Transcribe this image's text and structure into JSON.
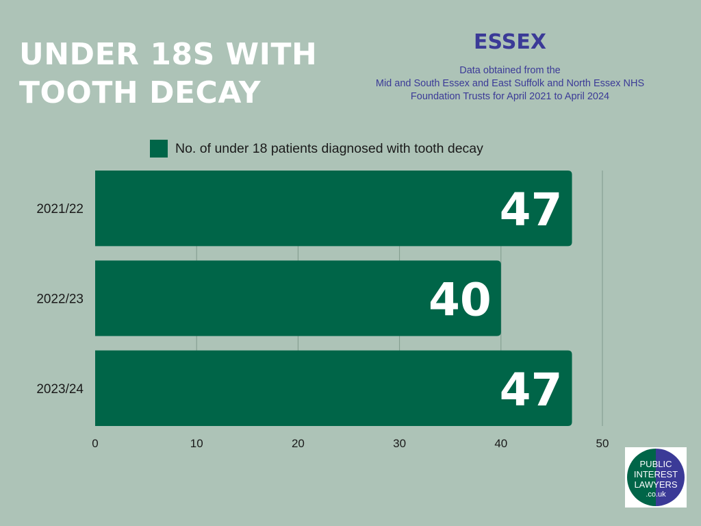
{
  "header": {
    "title_lines": [
      "UNDER 18S WITH",
      "TOOTH DECAY"
    ],
    "region": "ESSEX",
    "source_lines": [
      "Data obtained from the",
      "Mid and South Essex and East Suffolk and North Essex NHS",
      "Foundation Trusts for April 2021 to April 2024"
    ]
  },
  "colors": {
    "background": "#adc3b7",
    "bar": "#006548",
    "title": "#ffffff",
    "accent": "#3b3a97",
    "gridline": "#7f9a8c"
  },
  "logo": {
    "lines": [
      "PUBLIC",
      "INTEREST",
      "LAWYERS",
      ".co.uk"
    ],
    "colors": [
      "#006548",
      "#3b3a97"
    ]
  },
  "chart_data": {
    "type": "bar",
    "orientation": "horizontal",
    "categories": [
      "2021/22",
      "2022/23",
      "2023/24"
    ],
    "series": [
      {
        "name": "No. of under 18 patients diagnosed with tooth decay",
        "values": [
          47,
          40,
          47
        ]
      }
    ],
    "xlim": [
      0,
      50
    ],
    "xticks": [
      0,
      10,
      20,
      30,
      40,
      50
    ],
    "grid": true,
    "legend_position": "top",
    "data_labels": true
  }
}
